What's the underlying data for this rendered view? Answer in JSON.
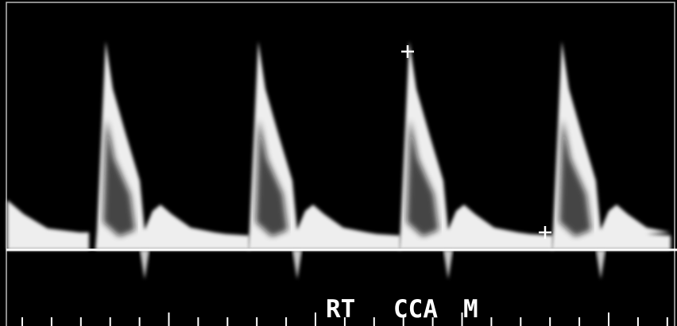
{
  "labels": [
    "RT",
    "CCA",
    "M"
  ]
}
